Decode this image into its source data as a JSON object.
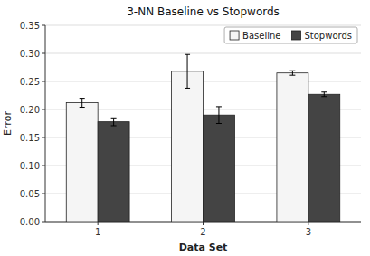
{
  "chart_data": {
    "type": "bar",
    "title": "3-NN Baseline vs Stopwords",
    "xlabel": "Data Set",
    "ylabel": "Error",
    "categories": [
      "1",
      "2",
      "3"
    ],
    "series": [
      {
        "name": "Baseline",
        "color": "#f5f5f5",
        "values": [
          0.212,
          0.268,
          0.265
        ],
        "errors": [
          0.008,
          0.03,
          0.004
        ]
      },
      {
        "name": "Stopwords",
        "color": "#444444",
        "values": [
          0.178,
          0.19,
          0.227
        ],
        "errors": [
          0.007,
          0.015,
          0.004
        ]
      }
    ],
    "ylim": [
      0,
      0.35
    ],
    "yticks": [
      {
        "value": 0,
        "label": "0.00"
      },
      0.05,
      {
        "value": 0.1,
        "label": "0.10"
      },
      0.15,
      {
        "value": 0.2,
        "label": "0.20"
      },
      0.25,
      {
        "value": 0.3,
        "label": "0.30"
      },
      0.35
    ],
    "grid": true,
    "legend": "upper right"
  }
}
